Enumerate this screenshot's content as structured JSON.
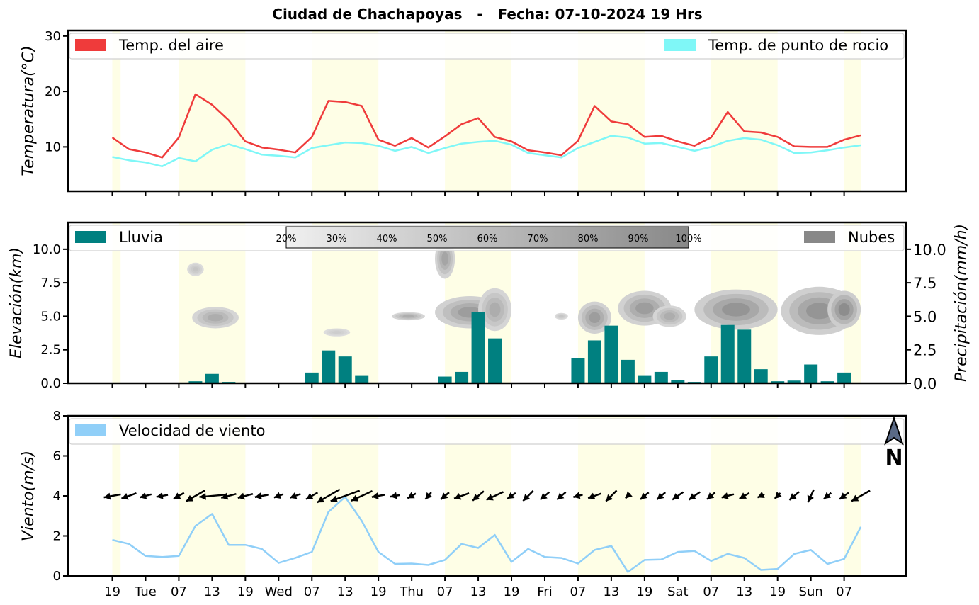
{
  "title": "Ciudad de Chachapoyas   -   Fecha: 07-10-2024 19 Hrs",
  "x_tick_labels": [
    "19",
    "Tue",
    "07",
    "13",
    "19",
    "Wed",
    "07",
    "13",
    "19",
    "Thu",
    "07",
    "13",
    "19",
    "Fri",
    "07",
    "13",
    "19",
    "Sat",
    "07",
    "13",
    "19",
    "Sun",
    "07"
  ],
  "day_bands": [
    [
      1,
      1.5
    ],
    [
      5,
      9
    ],
    [
      13,
      17
    ],
    [
      21,
      25
    ],
    [
      29,
      33
    ],
    [
      37,
      41
    ],
    [
      45,
      46
    ]
  ],
  "colors": {
    "air": "#ef3b3b",
    "dew": "#7ff7f7",
    "rain": "#008080",
    "clouds": "#888888",
    "wind": "#90cff8",
    "day_band": "#fefee6"
  },
  "chart_data": [
    {
      "type": "line",
      "ylabel": "Temperatura(°C)",
      "ylim": [
        2,
        31
      ],
      "yticks": [
        10,
        20,
        30
      ],
      "x": [
        1,
        2,
        3,
        4,
        5,
        6,
        7,
        8,
        9,
        10,
        11,
        12,
        13,
        14,
        15,
        16,
        17,
        18,
        19,
        20,
        21,
        22,
        23,
        24,
        25,
        26,
        27,
        28,
        29,
        30,
        31,
        32,
        33,
        34,
        35,
        36,
        37,
        38,
        39,
        40,
        41,
        42,
        43,
        44,
        45,
        46
      ],
      "series": [
        {
          "name": "Temp. del aire",
          "values": [
            11.7,
            9.6,
            9.0,
            8.1,
            11.7,
            19.5,
            17.6,
            14.8,
            11.0,
            9.9,
            9.5,
            9.0,
            11.8,
            18.3,
            18.1,
            17.4,
            11.3,
            10.2,
            11.6,
            9.9,
            11.9,
            14.1,
            15.2,
            11.8,
            11.0,
            9.4,
            9.0,
            8.5,
            11.1,
            17.4,
            14.6,
            14.1,
            11.8,
            12.0,
            11.0,
            10.2,
            11.7,
            16.3,
            12.8,
            12.6,
            11.8,
            10.1,
            10.0,
            10.0,
            11.3,
            12.1
          ]
        },
        {
          "name": "Temp. de punto de rocio",
          "values": [
            8.2,
            7.6,
            7.2,
            6.5,
            8.0,
            7.4,
            9.5,
            10.5,
            9.6,
            8.6,
            8.4,
            8.1,
            9.8,
            10.3,
            10.8,
            10.7,
            10.2,
            9.3,
            10.0,
            8.9,
            9.8,
            10.6,
            10.9,
            11.1,
            10.4,
            8.9,
            8.5,
            8.1,
            9.8,
            10.9,
            12.0,
            11.7,
            10.6,
            10.7,
            10.0,
            9.3,
            10.0,
            11.1,
            11.6,
            11.3,
            10.3,
            8.9,
            9.0,
            9.4,
            9.9,
            10.3
          ]
        }
      ]
    },
    {
      "type": "bar",
      "ylabel": "Elevación(km)",
      "y2label": "Precipitación(mm/h)",
      "ylim": [
        0,
        12
      ],
      "yticks": [
        0.0,
        2.5,
        5.0,
        7.5,
        10.0
      ],
      "y2ticks": [
        0.0,
        2.5,
        5.0,
        7.5,
        10.0
      ],
      "legend_rain": "Lluvia",
      "legend_clouds": "Nubes",
      "cloud_scale": [
        "20%",
        "30%",
        "40%",
        "50%",
        "60%",
        "70%",
        "80%",
        "90%",
        "100%"
      ],
      "x": [
        1,
        2,
        3,
        4,
        5,
        6,
        7,
        8,
        9,
        10,
        11,
        12,
        13,
        14,
        15,
        16,
        17,
        18,
        19,
        20,
        21,
        22,
        23,
        24,
        25,
        26,
        27,
        28,
        29,
        30,
        31,
        32,
        33,
        34,
        35,
        36,
        37,
        38,
        39,
        40,
        41,
        42,
        43,
        44,
        45,
        46
      ],
      "values": [
        0,
        0,
        0,
        0,
        0,
        0.15,
        0.7,
        0.1,
        0,
        0,
        0,
        0,
        0.8,
        2.45,
        2.0,
        0.55,
        0.05,
        0,
        0,
        0,
        0.5,
        0.85,
        5.3,
        3.35,
        0.05,
        0.05,
        0,
        0,
        1.85,
        3.2,
        4.3,
        1.75,
        0.55,
        0.85,
        0.25,
        0.1,
        2.0,
        4.35,
        4.0,
        1.05,
        0.15,
        0.2,
        1.4,
        0.15,
        0.8,
        0
      ],
      "clouds": [
        {
          "x": 6.0,
          "y": 8.5,
          "rx": 0.5,
          "ry": 0.5,
          "level": 0.3
        },
        {
          "x": 7.2,
          "y": 4.9,
          "rx": 1.4,
          "ry": 0.8,
          "level": 0.45
        },
        {
          "x": 14.5,
          "y": 3.8,
          "rx": 0.8,
          "ry": 0.3,
          "level": 0.25
        },
        {
          "x": 18.8,
          "y": 5.0,
          "rx": 1.0,
          "ry": 0.3,
          "level": 0.45
        },
        {
          "x": 21.0,
          "y": 9.3,
          "rx": 0.6,
          "ry": 1.5,
          "level": 0.5
        },
        {
          "x": 22.5,
          "y": 5.3,
          "rx": 2.1,
          "ry": 1.2,
          "level": 0.55
        },
        {
          "x": 24.0,
          "y": 5.5,
          "rx": 1.0,
          "ry": 1.6,
          "level": 0.45
        },
        {
          "x": 28.0,
          "y": 5.0,
          "rx": 0.4,
          "ry": 0.25,
          "level": 0.3
        },
        {
          "x": 30.0,
          "y": 4.9,
          "rx": 1.0,
          "ry": 1.2,
          "level": 0.55
        },
        {
          "x": 33.0,
          "y": 5.6,
          "rx": 1.6,
          "ry": 1.3,
          "level": 0.55
        },
        {
          "x": 34.5,
          "y": 5.0,
          "rx": 1.0,
          "ry": 0.8,
          "level": 0.45
        },
        {
          "x": 38.5,
          "y": 5.5,
          "rx": 2.5,
          "ry": 1.5,
          "level": 0.6
        },
        {
          "x": 43.5,
          "y": 5.4,
          "rx": 2.3,
          "ry": 1.8,
          "level": 0.6
        },
        {
          "x": 45.0,
          "y": 5.5,
          "rx": 1.0,
          "ry": 1.4,
          "level": 0.65
        }
      ]
    },
    {
      "type": "line",
      "ylabel": "Viento(m/s)",
      "ylim": [
        0,
        8
      ],
      "yticks": [
        0,
        2,
        4,
        6,
        8
      ],
      "north_label": "N",
      "x": [
        1,
        2,
        3,
        4,
        5,
        6,
        7,
        8,
        9,
        10,
        11,
        12,
        13,
        14,
        15,
        16,
        17,
        18,
        19,
        20,
        21,
        22,
        23,
        24,
        25,
        26,
        27,
        28,
        29,
        30,
        31,
        32,
        33,
        34,
        35,
        36,
        37,
        38,
        39,
        40,
        41,
        42,
        43,
        44,
        45,
        46
      ],
      "series": [
        {
          "name": "Velocidad de viento",
          "values": [
            1.8,
            1.6,
            1.0,
            0.95,
            1.0,
            2.5,
            3.1,
            1.55,
            1.55,
            1.35,
            0.65,
            0.9,
            1.2,
            3.2,
            3.95,
            2.75,
            1.2,
            0.6,
            0.62,
            0.55,
            0.8,
            1.6,
            1.4,
            2.05,
            0.7,
            1.35,
            0.95,
            0.9,
            0.62,
            1.3,
            1.5,
            0.2,
            0.8,
            0.82,
            1.2,
            1.25,
            0.75,
            1.1,
            0.9,
            0.3,
            0.35,
            1.1,
            1.3,
            0.6,
            0.85,
            2.45
          ]
        }
      ],
      "wind_direction_deg": [
        260,
        250,
        255,
        260,
        240,
        240,
        265,
        255,
        255,
        260,
        250,
        250,
        240,
        240,
        250,
        245,
        260,
        260,
        240,
        220,
        230,
        250,
        230,
        245,
        235,
        225,
        230,
        230,
        255,
        250,
        225,
        225,
        230,
        230,
        235,
        235,
        230,
        255,
        240,
        245,
        225,
        230,
        205,
        230,
        235,
        240
      ]
    }
  ]
}
